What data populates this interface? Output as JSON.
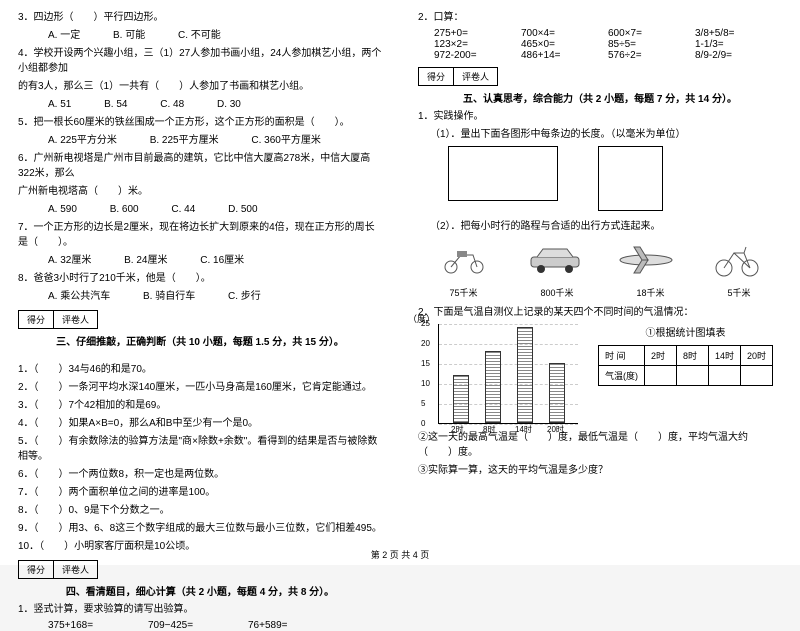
{
  "left": {
    "q3": "3．四边形（　　）平行四边形。",
    "q3opts": [
      "A. 一定",
      "B. 可能",
      "C. 不可能"
    ],
    "q4a": "4．学校开设两个兴趣小组，三（1）27人参加书画小组，24人参加棋艺小组，两个小组都参加",
    "q4b": "的有3人，那么三（1）一共有（　　）人参加了书画和棋艺小组。",
    "q4opts": [
      "A. 51",
      "B. 54",
      "C. 48",
      "D. 30"
    ],
    "q5": "5．把一根长60厘米的铁丝围成一个正方形，这个正方形的面积是（　　）。",
    "q5opts": [
      "A. 225平方分米",
      "B. 225平方厘米",
      "C. 360平方厘米"
    ],
    "q6a": "6．广州新电视塔是广州市目前最高的建筑，它比中信大厦高278米，中信大厦高322米，那么",
    "q6b": "广州新电视塔高（　　）米。",
    "q6opts": [
      "A. 590",
      "B. 600",
      "C. 44",
      "D. 500"
    ],
    "q7": "7．一个正方形的边长是2厘米，现在将边长扩大到原来的4倍，现在正方形的周长是（　　）。",
    "q7opts": [
      "A. 32厘米",
      "B. 24厘米",
      "C. 16厘米"
    ],
    "q8": "8．爸爸3小时行了210千米，他是（　　）。",
    "q8opts": [
      "A. 乘公共汽车",
      "B. 骑自行车",
      "C. 步行"
    ],
    "score_label_a": "得分",
    "score_label_b": "评卷人",
    "section3": "三、仔细推敲，正确判断（共 10 小题，每题 1.5 分，共 15 分）。",
    "j1": "1．（　　）34与46的和是70。",
    "j2": "2．（　　）一条河平均水深140厘米，一匹小马身高是160厘米，它肯定能通过。",
    "j3": "3．（　　）7个42相加的和是69。",
    "j4": "4．（　　）如果A×B=0，那么A和B中至少有一个是0。",
    "j5": "5．（　　）有余数除法的验算方法是\"商×除数+余数\"。看得到的结果是否与被除数相等。",
    "j6": "6．（　　）一个两位数8，积一定也是两位数。",
    "j7": "7．（　　）两个面积单位之间的进率是100。",
    "j8": "8．（　　）0、9是下个分数之一。",
    "j9": "9．（　　）用3、6、8这三个数字组成的最大三位数与最小三位数，它们相差495。",
    "j10": "10．（　　）小明家客厅面积是10公顷。",
    "section4": "四、看清题目，细心计算（共 2 小题，每题 4 分，共 8 分）。",
    "calc_intro": "1．竖式计算，要求验算的请写出验算。",
    "calc": [
      "375+168=",
      "709−425=",
      "76+589="
    ]
  },
  "right": {
    "oc_title": "2．口算：",
    "oc_r1": [
      "275+0=",
      "700×4=",
      "600×7=",
      "3/8+5/8="
    ],
    "oc_r2": [
      "123×2=",
      "465×0=",
      "85÷5=",
      "1-1/3="
    ],
    "oc_r3": [
      "972-200=",
      "486+14=",
      "576÷2=",
      "8/9-2/9="
    ],
    "score_label_a": "得分",
    "score_label_b": "评卷人",
    "section5": "五、认真思考，综合能力（共 2 小题，每题 7 分，共 14 分）。",
    "prac": "1．实践操作。",
    "prac1": "（1）．量出下面各图形中每条边的长度。（以毫米为单位）",
    "prac2": "（2）．把每小时行的路程与合适的出行方式连起来。",
    "transport_labels": [
      "75千米",
      "800千米",
      "18千米",
      "5千米"
    ],
    "temp_intro": "2．下面是气温自测仪上记录的某天四个不同时间的气温情况：",
    "chart_ylabel": "（度）",
    "table_title": "①根据统计图填表",
    "yticks": [
      "25",
      "20",
      "15",
      "10",
      "5",
      "0"
    ],
    "xticks": [
      "2时",
      "8时",
      "14时",
      "20时"
    ],
    "bars": [
      12,
      18,
      24,
      15
    ],
    "ymax": 25,
    "bar_color": "#999999",
    "table": {
      "r1": [
        "时  间",
        "2时",
        "8时",
        "14时",
        "20时"
      ],
      "r2": [
        "气温(度)",
        "",
        "",
        "",
        ""
      ]
    },
    "qa": "②这一天的最高气温是（　　）度，最低气温是（　　）度，平均气温大约（　　）度。",
    "qb": "③实际算一算，这天的平均气温是多少度？"
  },
  "footer": "第 2 页  共 4 页"
}
